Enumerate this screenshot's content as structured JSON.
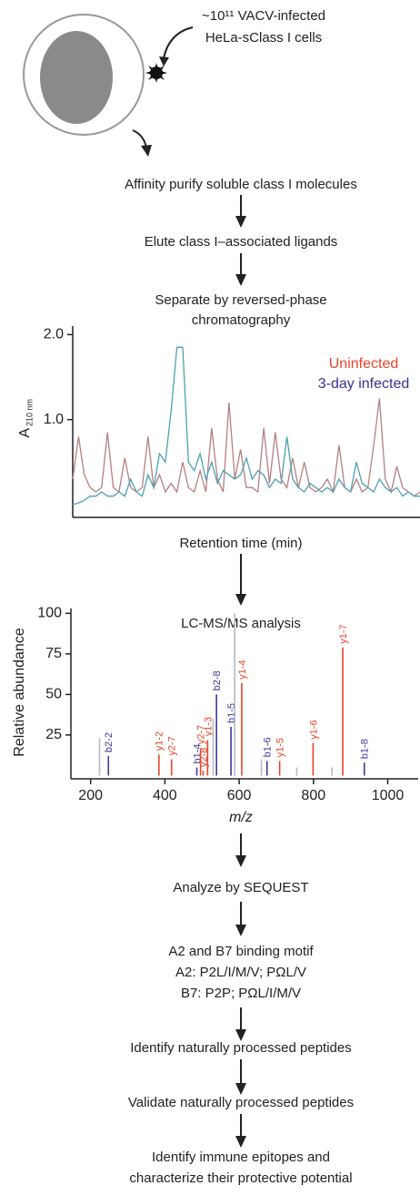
{
  "cells": {
    "line1": "~10¹¹ VACV-infected",
    "line2": "HeLa-sClass I cells"
  },
  "flow": {
    "step1": "Affinity purify soluble class I molecules",
    "step2": "Elute class I–associated ligands",
    "step3": [
      "Separate by reversed-phase",
      "chromatography"
    ],
    "step5": "Analyze by SEQUEST",
    "step6": [
      "A2 and B7 binding motif",
      "A2: P2L/I/M/V; PΩL/V",
      "B7: P2P; PΩL/I/M/V"
    ],
    "step7": "Identify naturally processed peptides",
    "step8": "Validate naturally processed peptides",
    "step9": [
      "Identify immune epitopes and",
      "characterize their protective potential"
    ]
  },
  "chart_data": [
    {
      "type": "line",
      "ylabel": "A",
      "ylabel_subscript": "210 nm",
      "xlabel": "Retention time (min)",
      "x": [
        0,
        1,
        2,
        3,
        4,
        5,
        6,
        7,
        8,
        9,
        10,
        11,
        12,
        13,
        14,
        15,
        16,
        17,
        18,
        19,
        20,
        21,
        22,
        23,
        24,
        25,
        26,
        27,
        28,
        29,
        30,
        31,
        32,
        33,
        34,
        35,
        36,
        37,
        38,
        39,
        40,
        41,
        42,
        43,
        44,
        45,
        46,
        47,
        48,
        49,
        50,
        51,
        52,
        53,
        54,
        55,
        56,
        57,
        58,
        59,
        60
      ],
      "xlim": [
        0,
        60
      ],
      "ylim": [
        -0.15,
        2.1
      ],
      "yticks": [
        {
          "value": 2,
          "label": "2.0"
        },
        {
          "value": 1,
          "label": "1.0"
        }
      ],
      "series": [
        {
          "name": "Uninfected",
          "color": "#e8442c",
          "line_color": "#b58080",
          "values": [
            0.3,
            0.8,
            0.35,
            0.2,
            0.15,
            0.2,
            0.85,
            0.2,
            0.15,
            0.55,
            0.2,
            0.15,
            0.2,
            0.8,
            0.2,
            0.35,
            0.15,
            0.25,
            0.15,
            0.5,
            0.2,
            0.15,
            0.4,
            0.15,
            0.9,
            0.3,
            0.15,
            1.2,
            0.3,
            0.65,
            0.2,
            0.2,
            0.15,
            0.9,
            0.25,
            0.85,
            0.3,
            0.2,
            0.55,
            0.2,
            0.5,
            0.2,
            0.15,
            0.2,
            0.3,
            0.15,
            0.7,
            0.2,
            0.15,
            0.3,
            0.15,
            0.2,
            0.7,
            1.25,
            0.3,
            0.15,
            0.45,
            0.2,
            0.15,
            0.1,
            0.15
          ]
        },
        {
          "name": "3-day infected",
          "color": "#33339a",
          "line_color": "#4fa0b4",
          "values": [
            0,
            0.02,
            0.05,
            0.1,
            0.1,
            0.15,
            0.1,
            0.1,
            0.15,
            0.1,
            0.3,
            0.15,
            0.1,
            0.35,
            0.2,
            0.6,
            0.5,
            1.1,
            1.85,
            1.85,
            0.5,
            0.4,
            0.6,
            0.3,
            0.5,
            0.25,
            0.4,
            0.35,
            0.3,
            0.35,
            0.55,
            0.3,
            0.4,
            0.35,
            0.2,
            0.3,
            0.25,
            0.8,
            0.3,
            0.2,
            0.15,
            0.25,
            0.2,
            0.15,
            0.2,
            0.15,
            0.3,
            0.2,
            0.15,
            0.5,
            0.25,
            0.2,
            0.15,
            0.3,
            0.2,
            0.15,
            0.2,
            0.1,
            0.15,
            0.1,
            0.1
          ]
        }
      ]
    },
    {
      "type": "stem",
      "title": "LC-MS/MS analysis",
      "xlabel": "m/z",
      "ylabel": "Relative abundance",
      "xlim": [
        147,
        1082
      ],
      "ylim": [
        -2,
        103
      ],
      "xticks": [
        200,
        400,
        600,
        800,
        1000
      ],
      "yticks": [
        25,
        50,
        75,
        100
      ],
      "x": [
        224,
        248,
        384,
        418,
        486,
        496,
        503,
        515,
        530,
        539,
        578,
        588,
        607,
        660,
        675,
        709,
        755,
        799,
        850,
        879,
        937
      ],
      "values": [
        23,
        12,
        13,
        10,
        5,
        17,
        3,
        22,
        35,
        50,
        30,
        100,
        57,
        10,
        9,
        9,
        5,
        20,
        5,
        79,
        8
      ],
      "peak_labels": [
        null,
        "b2-2",
        "y1-2",
        "y2-7",
        "b1-4",
        "y2-7",
        "y2-8",
        "y1-3",
        null,
        "b2-8",
        "b1-5",
        null,
        "y1-4",
        null,
        "b1-6",
        "y1-5",
        null,
        "y1-6",
        null,
        "y1-7",
        "b1-8"
      ],
      "colors": [
        "#b8b8c8",
        "#3a3a9a",
        "#e8442c",
        "#e8442c",
        "#3a3a9a",
        "#e8442c",
        "#e8442c",
        "#e8442c",
        "#b8b8c8",
        "#3a3a9a",
        "#3a3a9a",
        "#b8b8c8",
        "#e8442c",
        "#b8b8c8",
        "#3a3a9a",
        "#e8442c",
        "#b8b8c8",
        "#e8442c",
        "#b8b8c8",
        "#e8442c",
        "#3a3a9a"
      ]
    }
  ]
}
